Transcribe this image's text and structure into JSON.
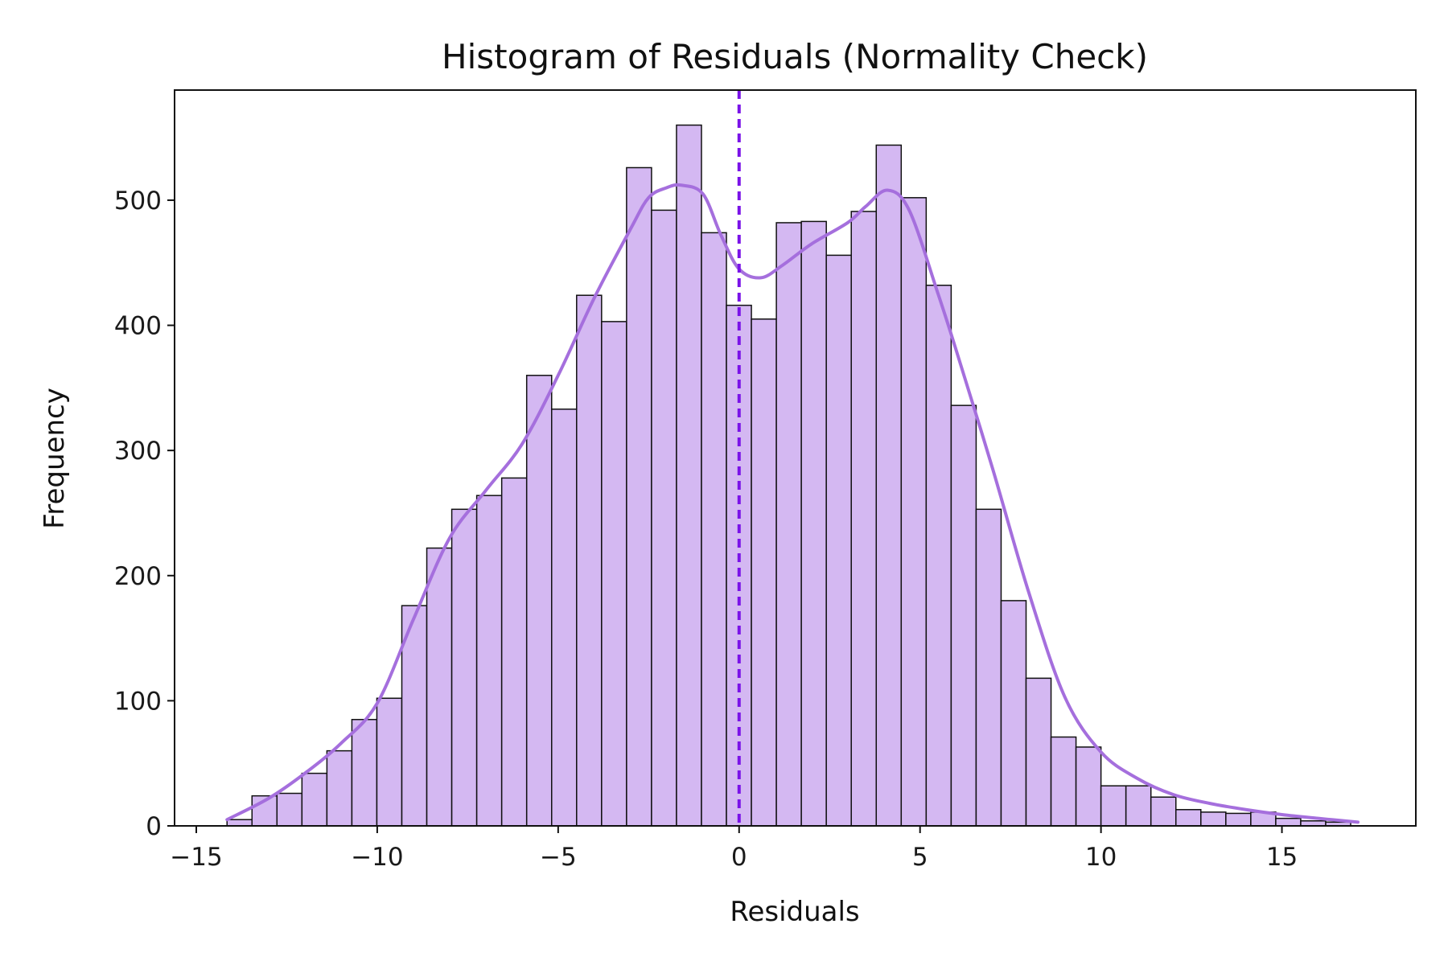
{
  "chart_data": {
    "type": "bar",
    "title": "Histogram of Residuals (Normality Check)",
    "xlabel": "Residuals",
    "ylabel": "Frequency",
    "xlim": [
      -15.6,
      18.7
    ],
    "ylim": [
      0,
      588
    ],
    "xticks": [
      -15,
      -10,
      -5,
      0,
      5,
      10,
      15
    ],
    "xtick_labels": [
      "−15",
      "−10",
      "−5",
      "0",
      "5",
      "10",
      "15"
    ],
    "yticks": [
      0,
      100,
      200,
      300,
      400,
      500
    ],
    "ytick_labels": [
      "0",
      "100",
      "200",
      "300",
      "400",
      "500"
    ],
    "grid": false,
    "legend": "none",
    "bins": {
      "start": -14.15,
      "width": 0.69,
      "counts": [
        5,
        24,
        26,
        42,
        60,
        85,
        102,
        176,
        222,
        253,
        264,
        278,
        360,
        333,
        424,
        403,
        526,
        492,
        560,
        474,
        416,
        405,
        482,
        483,
        456,
        491,
        544,
        502,
        432,
        336,
        253,
        180,
        118,
        71,
        63,
        32,
        32,
        23,
        13,
        11,
        10,
        11,
        6,
        4,
        3
      ]
    },
    "kde": {
      "x": [
        -14.15,
        -13.0,
        -12.0,
        -11.0,
        -10.0,
        -9.0,
        -8.0,
        -7.0,
        -6.0,
        -5.0,
        -4.0,
        -3.0,
        -2.5,
        -2.0,
        -1.6,
        -1.0,
        -0.5,
        0.0,
        0.6,
        1.2,
        2.0,
        3.0,
        3.5,
        4.1,
        4.7,
        5.5,
        6.0,
        7.0,
        8.0,
        9.0,
        10.0,
        11.0,
        12.0,
        13.0,
        14.0,
        15.0,
        16.0,
        17.1
      ],
      "y": [
        5,
        22,
        42,
        66,
        98,
        165,
        230,
        268,
        305,
        360,
        422,
        477,
        502,
        510,
        512,
        505,
        472,
        445,
        438,
        448,
        465,
        482,
        495,
        508,
        492,
        425,
        380,
        286,
        187,
        103,
        59,
        38,
        25,
        18,
        13,
        9,
        6,
        3
      ]
    },
    "mean_line_x": 0,
    "colors": {
      "bar_fill": "#D4B8F2",
      "bar_edge": "#111111",
      "kde_line": "#A56FDD",
      "mean_line": "#7A12E8"
    }
  }
}
